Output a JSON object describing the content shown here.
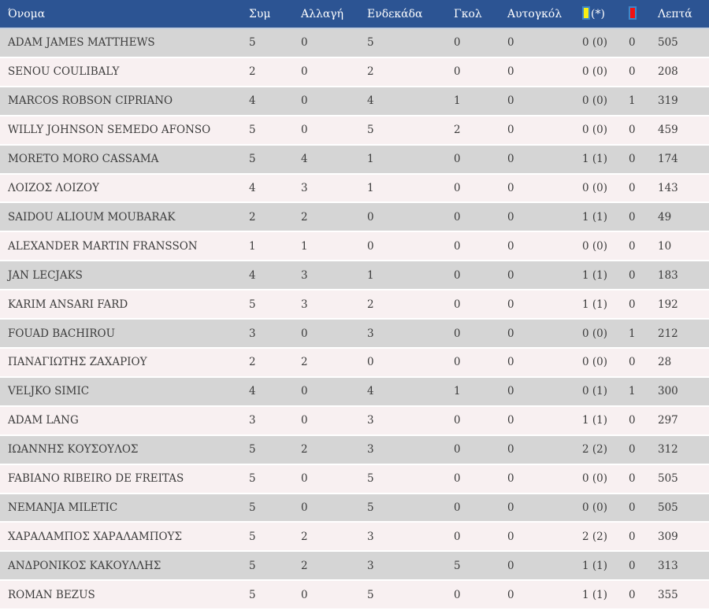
{
  "table": {
    "columns": [
      {
        "key": "name",
        "label": "Όνομα"
      },
      {
        "key": "apps",
        "label": "Συμ"
      },
      {
        "key": "sub_in",
        "label": "Αλλαγή"
      },
      {
        "key": "starting",
        "label": "Ενδεκάδα"
      },
      {
        "key": "goals",
        "label": "Γκολ"
      },
      {
        "key": "own_goals",
        "label": "Αυτογκόλ"
      },
      {
        "key": "yellow",
        "label": "(*)",
        "icon": "yellow-card-icon"
      },
      {
        "key": "red",
        "label": "",
        "icon": "red-card-icon"
      },
      {
        "key": "minutes",
        "label": "Λεπτά"
      }
    ],
    "rows": [
      [
        "ADAM JAMES MATTHEWS",
        "5",
        "0",
        "5",
        "0",
        "0",
        "0 (0)",
        "0",
        "505"
      ],
      [
        "SENOU COULIBALY",
        "2",
        "0",
        "2",
        "0",
        "0",
        "0 (0)",
        "0",
        "208"
      ],
      [
        "MARCOS ROBSON CIPRIANO",
        "4",
        "0",
        "4",
        "1",
        "0",
        "0 (0)",
        "1",
        "319"
      ],
      [
        "WILLY JOHNSON SEMEDO AFONSO",
        "5",
        "0",
        "5",
        "2",
        "0",
        "0 (0)",
        "0",
        "459"
      ],
      [
        "MORETO MORO CASSAMA",
        "5",
        "4",
        "1",
        "0",
        "0",
        "1 (1)",
        "0",
        "174"
      ],
      [
        "ΛΟΙΖΟΣ ΛΟΙΖΟΥ",
        "4",
        "3",
        "1",
        "0",
        "0",
        "0 (0)",
        "0",
        "143"
      ],
      [
        "SAIDOU ALIOUM MOUBARAK",
        "2",
        "2",
        "0",
        "0",
        "0",
        "1 (1)",
        "0",
        "49"
      ],
      [
        "ALEXANDER MARTIN FRANSSON",
        "1",
        "1",
        "0",
        "0",
        "0",
        "0 (0)",
        "0",
        "10"
      ],
      [
        "JAN LECJAKS",
        "4",
        "3",
        "1",
        "0",
        "0",
        "1 (1)",
        "0",
        "183"
      ],
      [
        "KARIM ANSARI FARD",
        "5",
        "3",
        "2",
        "0",
        "0",
        "1 (1)",
        "0",
        "192"
      ],
      [
        "FOUAD BACHIROU",
        "3",
        "0",
        "3",
        "0",
        "0",
        "0 (0)",
        "1",
        "212"
      ],
      [
        "ΠΑΝΑΓΙΩΤΗΣ ΖΑΧΑΡΙΟΥ",
        "2",
        "2",
        "0",
        "0",
        "0",
        "0 (0)",
        "0",
        "28"
      ],
      [
        "VELJKO SIMIC",
        "4",
        "0",
        "4",
        "1",
        "0",
        "0 (1)",
        "1",
        "300"
      ],
      [
        "ADAM LANG",
        "3",
        "0",
        "3",
        "0",
        "0",
        "1 (1)",
        "0",
        "297"
      ],
      [
        "ΙΩΑΝΝΗΣ ΚΟΥΣΟΥΛΟΣ",
        "5",
        "2",
        "3",
        "0",
        "0",
        "2 (2)",
        "0",
        "312"
      ],
      [
        "FABIANO RIBEIRO DE FREITAS",
        "5",
        "0",
        "5",
        "0",
        "0",
        "0 (0)",
        "0",
        "505"
      ],
      [
        "NEMANJA MILETIC",
        "5",
        "0",
        "5",
        "0",
        "0",
        "0 (0)",
        "0",
        "505"
      ],
      [
        "ΧΑΡΑΛΑΜΠΟΣ ΧΑΡΑΛΑΜΠΟΥΣ",
        "5",
        "2",
        "3",
        "0",
        "0",
        "2 (2)",
        "0",
        "309"
      ],
      [
        "ΑΝΔΡΟΝΙΚΟΣ ΚΑΚΟΥΛΛΗΣ",
        "5",
        "2",
        "3",
        "5",
        "0",
        "1 (1)",
        "0",
        "313"
      ],
      [
        "ROMAN BEZUS",
        "5",
        "0",
        "5",
        "0",
        "0",
        "1 (1)",
        "0",
        "355"
      ]
    ]
  },
  "colors": {
    "header_bg": "#2c5493",
    "header_sep": "#c3cedf",
    "row_odd": "#d5d5d5",
    "row_even": "#f8f0f1",
    "row_sep": "#ffffff",
    "row_text": "#3c3c3c",
    "yellow_card": "#f8ef13",
    "red_card": "#f21111",
    "card_border": "#3d87c9"
  }
}
